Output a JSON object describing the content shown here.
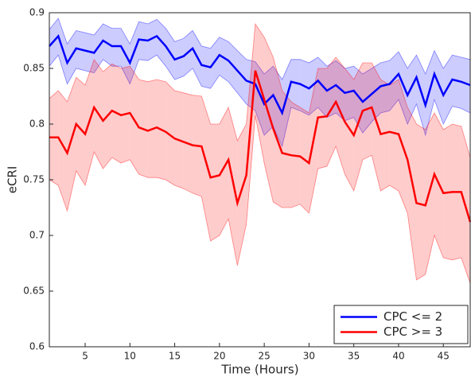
{
  "chart_data": {
    "type": "line-band",
    "x_label": "Time (Hours)",
    "y_label": "eCRI",
    "x": [
      1,
      2,
      3,
      4,
      5,
      6,
      7,
      8,
      9,
      10,
      11,
      12,
      13,
      14,
      15,
      16,
      17,
      18,
      19,
      20,
      21,
      22,
      23,
      24,
      25,
      26,
      27,
      28,
      29,
      30,
      31,
      32,
      33,
      34,
      35,
      36,
      37,
      38,
      39,
      40,
      41,
      42,
      43,
      44,
      45,
      46,
      47,
      48
    ],
    "xlim": [
      1,
      48
    ],
    "xticks": [
      5,
      10,
      15,
      20,
      25,
      30,
      35,
      40,
      45
    ],
    "ylim": [
      0.6,
      0.9
    ],
    "yticks": [
      0.6,
      0.65,
      0.7,
      0.75,
      0.8,
      0.85,
      0.9
    ],
    "grid": false,
    "legend": "lower right",
    "series": [
      {
        "name": "CPC <= 2",
        "color": "#0000ff",
        "band_color": "#0000ff",
        "values": [
          0.87,
          0.879,
          0.855,
          0.868,
          0.866,
          0.864,
          0.875,
          0.87,
          0.87,
          0.855,
          0.876,
          0.875,
          0.879,
          0.87,
          0.858,
          0.861,
          0.868,
          0.853,
          0.851,
          0.862,
          0.857,
          0.848,
          0.839,
          0.836,
          0.818,
          0.826,
          0.81,
          0.838,
          0.836,
          0.832,
          0.839,
          0.83,
          0.835,
          0.828,
          0.83,
          0.82,
          0.827,
          0.834,
          0.836,
          0.845,
          0.826,
          0.842,
          0.817,
          0.845,
          0.826,
          0.84,
          0.838,
          0.835
        ],
        "upper": [
          0.885,
          0.895,
          0.872,
          0.884,
          0.882,
          0.88,
          0.89,
          0.886,
          0.886,
          0.872,
          0.892,
          0.89,
          0.894,
          0.886,
          0.874,
          0.877,
          0.884,
          0.87,
          0.868,
          0.878,
          0.874,
          0.866,
          0.858,
          0.856,
          0.845,
          0.852,
          0.84,
          0.858,
          0.858,
          0.855,
          0.86,
          0.852,
          0.857,
          0.85,
          0.852,
          0.845,
          0.85,
          0.855,
          0.857,
          0.865,
          0.85,
          0.862,
          0.845,
          0.866,
          0.85,
          0.862,
          0.86,
          0.858
        ],
        "lower": [
          0.852,
          0.862,
          0.836,
          0.85,
          0.848,
          0.846,
          0.858,
          0.852,
          0.852,
          0.836,
          0.858,
          0.857,
          0.862,
          0.852,
          0.84,
          0.843,
          0.85,
          0.834,
          0.832,
          0.844,
          0.838,
          0.828,
          0.818,
          0.812,
          0.79,
          0.798,
          0.78,
          0.815,
          0.812,
          0.808,
          0.815,
          0.806,
          0.81,
          0.803,
          0.806,
          0.792,
          0.802,
          0.81,
          0.812,
          0.822,
          0.8,
          0.818,
          0.79,
          0.822,
          0.8,
          0.816,
          0.814,
          0.81
        ]
      },
      {
        "name": "CPC >= 3",
        "color": "#ff0000",
        "band_color": "#ff0000",
        "values": [
          0.788,
          0.788,
          0.774,
          0.8,
          0.791,
          0.815,
          0.803,
          0.812,
          0.808,
          0.81,
          0.797,
          0.794,
          0.797,
          0.793,
          0.787,
          0.784,
          0.781,
          0.78,
          0.752,
          0.754,
          0.768,
          0.729,
          0.754,
          0.848,
          0.822,
          0.796,
          0.774,
          0.772,
          0.771,
          0.765,
          0.806,
          0.807,
          0.82,
          0.802,
          0.79,
          0.812,
          0.815,
          0.791,
          0.793,
          0.791,
          0.768,
          0.729,
          0.727,
          0.755,
          0.738,
          0.739,
          0.739,
          0.712
        ],
        "upper": [
          0.823,
          0.83,
          0.82,
          0.842,
          0.835,
          0.858,
          0.847,
          0.854,
          0.85,
          0.852,
          0.84,
          0.838,
          0.84,
          0.838,
          0.83,
          0.828,
          0.826,
          0.825,
          0.8,
          0.8,
          0.815,
          0.785,
          0.8,
          0.89,
          0.878,
          0.86,
          0.83,
          0.82,
          0.815,
          0.81,
          0.85,
          0.85,
          0.86,
          0.85,
          0.84,
          0.855,
          0.855,
          0.84,
          0.835,
          0.84,
          0.815,
          0.8,
          0.795,
          0.81,
          0.795,
          0.8,
          0.798,
          0.77
        ],
        "lower": [
          0.75,
          0.745,
          0.722,
          0.758,
          0.745,
          0.775,
          0.76,
          0.77,
          0.765,
          0.768,
          0.755,
          0.752,
          0.752,
          0.75,
          0.745,
          0.742,
          0.738,
          0.735,
          0.695,
          0.7,
          0.715,
          0.673,
          0.71,
          0.808,
          0.765,
          0.73,
          0.725,
          0.725,
          0.728,
          0.72,
          0.76,
          0.762,
          0.78,
          0.755,
          0.74,
          0.768,
          0.772,
          0.74,
          0.745,
          0.74,
          0.72,
          0.66,
          0.665,
          0.7,
          0.68,
          0.678,
          0.68,
          0.657
        ]
      }
    ]
  }
}
